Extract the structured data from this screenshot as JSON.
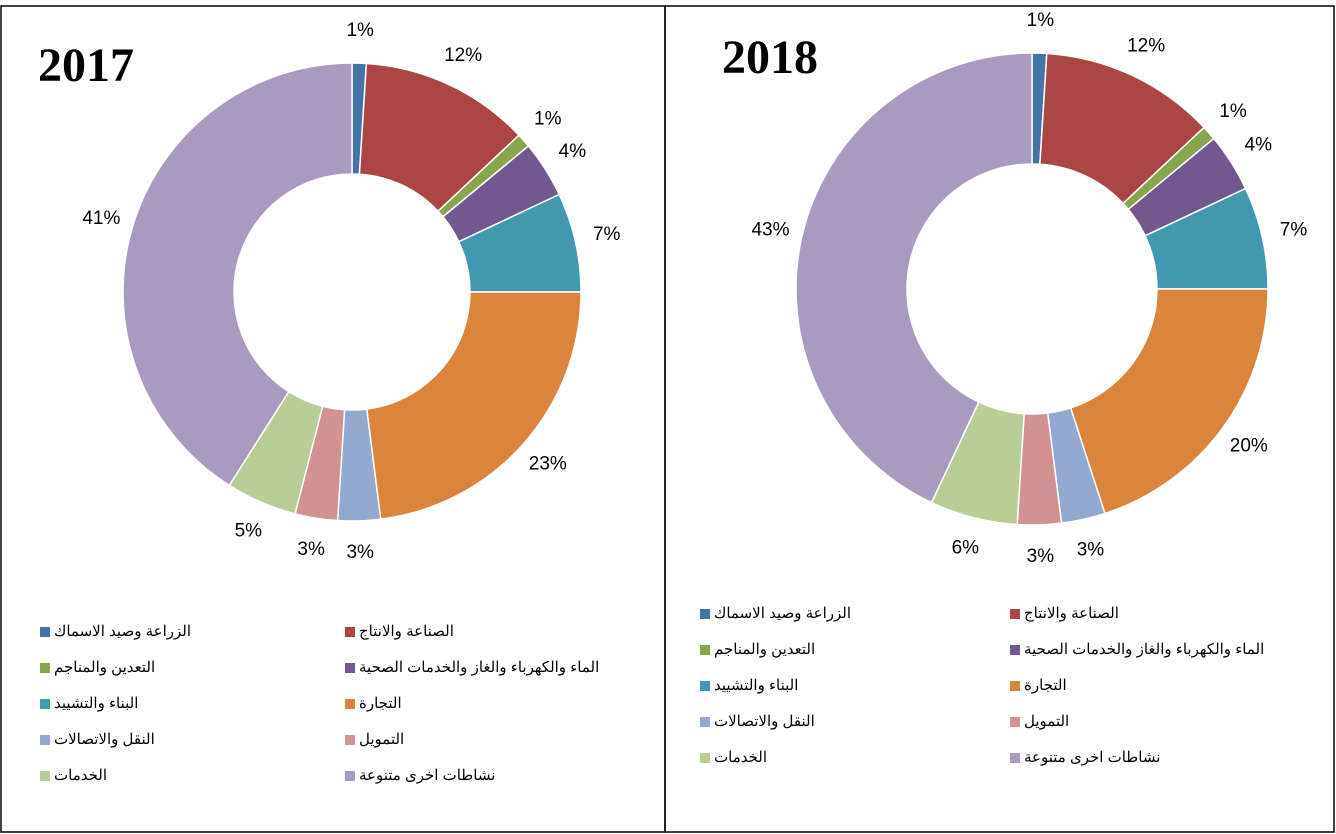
{
  "chart_data": [
    {
      "type": "donut",
      "title": "2017",
      "categories": [
        "الزراعة وصيد الاسماك",
        "الصناعة والانتاج",
        "التعدين والمناجم",
        "الماء والكهرباء والغاز والخدمات الصحية",
        "البناء والتشييد",
        "التجارة",
        "النقل والاتصالات",
        "التمويل",
        "الخدمات",
        "نشاطات اخرى متنوعة"
      ],
      "values": [
        1,
        12,
        1,
        4,
        7,
        23,
        3,
        3,
        5,
        41
      ],
      "value_labels": [
        "1%",
        "12%",
        "1%",
        "4%",
        "7%",
        "23%",
        "3%",
        "3%",
        "5%",
        "41%"
      ],
      "colors": [
        "#4572a7",
        "#aa4643",
        "#89a54e",
        "#71588f",
        "#4198af",
        "#db843d",
        "#93a9cf",
        "#d19392",
        "#b9cd96",
        "#a99bbd"
      ]
    },
    {
      "type": "donut",
      "title": "2018",
      "categories": [
        "الزراعة وصيد الاسماك",
        "الصناعة والانتاج",
        "التعدين والمناجم",
        "الماء والكهرباء والغاز والخدمات الصحية",
        "البناء والتشييد",
        "التجارة",
        "النقل والاتصالات",
        "التمويل",
        "الخدمات",
        "نشاطات اخرى متنوعة"
      ],
      "values": [
        1,
        12,
        1,
        4,
        7,
        20,
        3,
        3,
        6,
        43
      ],
      "value_labels": [
        "1%",
        "12%",
        "1%",
        "4%",
        "7%",
        "20%",
        "3%",
        "3%",
        "6%",
        "43%"
      ],
      "colors": [
        "#4572a7",
        "#aa4643",
        "#89a54e",
        "#71588f",
        "#4198af",
        "#db843d",
        "#93a9cf",
        "#d19392",
        "#b9cd96",
        "#a99bbd"
      ]
    }
  ]
}
